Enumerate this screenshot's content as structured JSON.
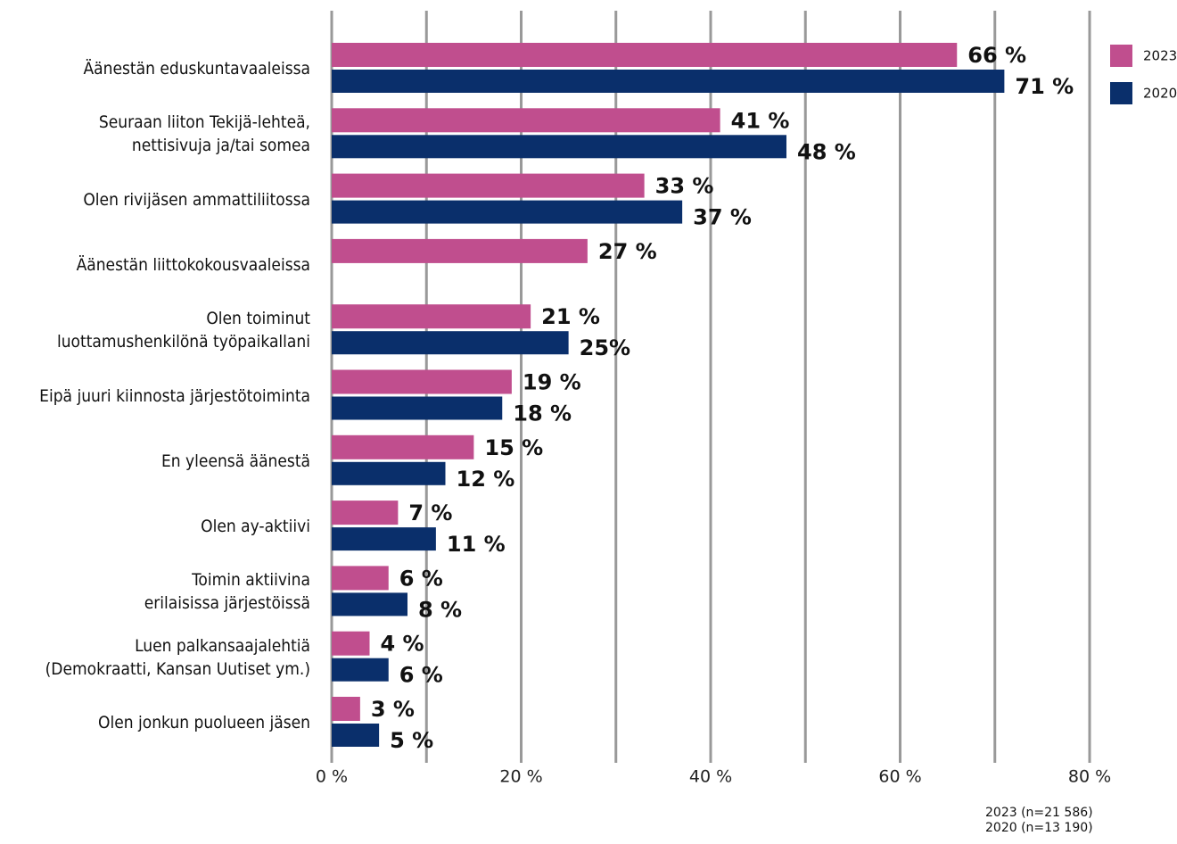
{
  "chart_data": {
    "type": "hbar",
    "categories": [
      "Äänestän eduskuntavaaleissa",
      "Seuraan liiton Tekijä-lehteä,\nnettisivuja ja/tai somea",
      "Olen rivijäsen ammattiliitossa",
      "Äänestän liittokokousvaaleissa",
      "Olen toiminut\nluottamushenkilönä työpaikallani",
      "Eipä juuri kiinnosta järjestötoiminta",
      "En yleensä äänestä",
      "Olen ay-aktiivi",
      "Toimin aktiivina\nerilaisissa järjestöissä",
      "Luen palkansaajalehtiä\n(Demokraatti, Kansan Uutiset ym.)",
      "Olen jonkun puolueen jäsen"
    ],
    "series": [
      {
        "name": "2023",
        "color": "#c04e8e",
        "values": [
          66,
          41,
          33,
          27,
          21,
          19,
          15,
          7,
          6,
          4,
          3
        ],
        "value_labels": [
          "66 %",
          "41 %",
          "33 %",
          "27 %",
          "21 %",
          "19 %",
          "15 %",
          "7 %",
          "6 %",
          "4 %",
          "3 %"
        ]
      },
      {
        "name": "2020",
        "color": "#0a2f6b",
        "values": [
          71,
          48,
          37,
          null,
          25,
          18,
          12,
          11,
          8,
          6,
          5
        ],
        "value_labels": [
          "71 %",
          "48 %",
          "37 %",
          null,
          "25%",
          "18 %",
          "12 %",
          "11 %",
          "8 %",
          "6 %",
          "5 %"
        ]
      }
    ],
    "xlim": [
      0,
      80
    ],
    "xticks": [
      {
        "value": 0,
        "label": "0 %"
      },
      {
        "value": 10,
        "label": null
      },
      {
        "value": 20,
        "label": "20 %"
      },
      {
        "value": 30,
        "label": null
      },
      {
        "value": 40,
        "label": "40 %"
      },
      {
        "value": 50,
        "label": null
      },
      {
        "value": 60,
        "label": "60 %"
      },
      {
        "value": 70,
        "label": null
      },
      {
        "value": 80,
        "label": "80 %"
      }
    ],
    "grid": true,
    "legend": "top-right",
    "note": "2023 (n=21 586)\n2020 (n=13 190)"
  }
}
